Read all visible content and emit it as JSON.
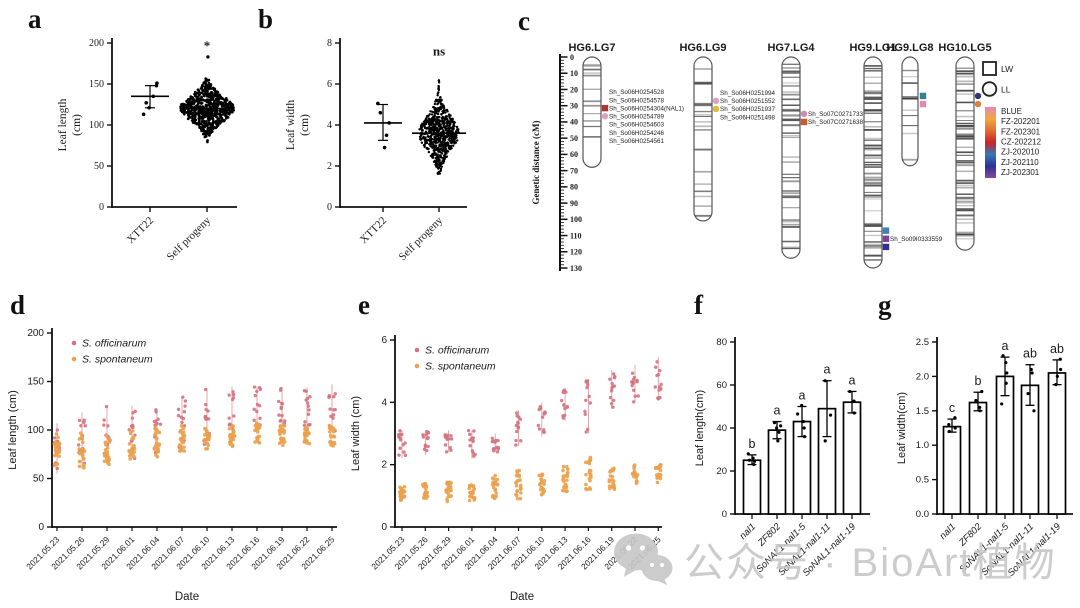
{
  "panel_letters": {
    "a": "a",
    "b": "b",
    "c": "c",
    "d": "d",
    "e": "e",
    "f": "f",
    "g": "g"
  },
  "watermark": {
    "icon": "wechat-icon",
    "text": "公众号 · BioArt植物"
  },
  "chart_data": [
    {
      "id": "a",
      "type": "scatter",
      "subtype": "beeswarm",
      "ylabel_lines": [
        "Leaf length",
        "(cm)"
      ],
      "ylim": [
        0,
        200
      ],
      "yticks": [
        0,
        50,
        100,
        150,
        200
      ],
      "ytick_labels": [
        "0",
        "50",
        "100",
        "150",
        "200"
      ],
      "categories": [
        "XTT22",
        "Self progeny"
      ],
      "groups": [
        {
          "name": "XTT22",
          "points": [
            151,
            148,
            135,
            127,
            121,
            113
          ],
          "mean": 135,
          "err_low": 121,
          "err_high": 148
        },
        {
          "name": "Self progeny",
          "mean": 120,
          "annotation": "*",
          "cloud": {
            "n": 680,
            "center": 120,
            "sd": 15,
            "min": 63,
            "max": 160
          },
          "outliers": [
            183
          ]
        }
      ]
    },
    {
      "id": "b",
      "type": "scatter",
      "subtype": "beeswarm",
      "ylabel_lines": [
        "Leaf width",
        "(cm)"
      ],
      "ylim": [
        0,
        8
      ],
      "yticks": [
        0,
        2,
        4,
        6,
        8
      ],
      "ytick_labels": [
        "0",
        "2",
        "4",
        "6",
        "8"
      ],
      "categories": [
        "XTT22",
        "Self progeny"
      ],
      "groups": [
        {
          "name": "XTT22",
          "points": [
            5.05,
            4.6,
            4.1,
            3.5,
            2.9
          ],
          "mean": 4.1,
          "err_low": 3.25,
          "err_high": 5.0
        },
        {
          "name": "Self progeny",
          "mean": 3.6,
          "annotation": "ns",
          "cloud": {
            "n": 680,
            "center": 3.6,
            "sd": 0.8,
            "min": 1.6,
            "max": 6.6
          },
          "outliers": []
        }
      ]
    },
    {
      "id": "c",
      "type": "linkage-map",
      "axis": {
        "label": "Genetic distance (cM)",
        "min": 0,
        "max": 130,
        "major": 10,
        "minor": 2
      },
      "legend_shapes": [
        {
          "shape": "square",
          "label": "LW"
        },
        {
          "shape": "circle",
          "label": "LL"
        }
      ],
      "legend_colors": [
        {
          "label": "BLUE",
          "color": "#e287b6"
        },
        {
          "label": "FZ-202201",
          "color": "#f2a93b"
        },
        {
          "label": "FZ-202301",
          "color": "#e06e30"
        },
        {
          "label": "CZ-202212",
          "color": "#cc2128"
        },
        {
          "label": "ZJ-202010",
          "color": "#3579b8"
        },
        {
          "label": "ZJ-202110",
          "color": "#2e3192"
        },
        {
          "label": "ZJ-202301",
          "color": "#86489c"
        }
      ],
      "chromosomes": [
        {
          "name": "HG6.LG7",
          "length_cM": 68,
          "band_count": 13,
          "markers": [
            {
              "label": "Sh_So06H0254528",
              "cM": 21.5,
              "shape": "none",
              "color": ""
            },
            {
              "label": "Sh_So06H0254578",
              "cM": 26.5,
              "shape": "none",
              "color": ""
            },
            {
              "label": "Sh_So06H0254304(NAL1)",
              "cM": 31.5,
              "shape": "square",
              "color": "#a63a32"
            },
            {
              "label": "Sh_So06H0254789",
              "cM": 36.5,
              "shape": "circle",
              "color": "#dba3c3"
            },
            {
              "label": "Sh_So06H0254603",
              "cM": 41.5,
              "shape": "none",
              "color": ""
            },
            {
              "label": "Sh_So06H0254246",
              "cM": 46.5,
              "shape": "none",
              "color": ""
            },
            {
              "label": "Sh_So06H0254561",
              "cM": 51.5,
              "shape": "none",
              "color": ""
            }
          ]
        },
        {
          "name": "HG6.LG9",
          "length_cM": 101,
          "band_count": 20,
          "markers": [
            {
              "label": "Sh_So06H0251994",
              "cM": 22,
              "shape": "none",
              "color": ""
            },
            {
              "label": "Sh_So06H0251552",
              "cM": 27,
              "shape": "circle",
              "color": "#dba3c3"
            },
            {
              "label": "Sh_So06H0251937",
              "cM": 32,
              "shape": "circle",
              "color": "#e3b83e"
            },
            {
              "label": "Sh_So06H0251498",
              "cM": 37,
              "shape": "none",
              "color": ""
            }
          ]
        },
        {
          "name": "HG7.LG4",
          "length_cM": 124,
          "band_count": 45,
          "markers": [
            {
              "label": "Sh_So07C0271733",
              "cM": 35,
              "shape": "circle",
              "color": "#c98cb4"
            },
            {
              "label": "Sh_So07C0271638",
              "cM": 40,
              "shape": "square",
              "color": "#cc5a2e"
            }
          ]
        },
        {
          "name": "HG9.LG1",
          "length_cM": 130,
          "band_count": 72,
          "markers": [
            {
              "label": "",
              "cM": 107,
              "shape": "square",
              "color": "#4080b8"
            },
            {
              "label": "Sh_So09I0333559",
              "cM": 112,
              "shape": "square",
              "color": "#7b4397"
            },
            {
              "label": "",
              "cM": 117,
              "shape": "square",
              "color": "#2e3192"
            }
          ]
        },
        {
          "name": "HG9.LG8",
          "length_cM": 67,
          "band_count": 13,
          "markers": [
            {
              "label": "",
              "cM": 24,
              "shape": "square",
              "color": "#35808e"
            },
            {
              "label": "",
              "cM": 29,
              "shape": "square",
              "color": "#d890ab"
            }
          ]
        },
        {
          "name": "HG10.LG5",
          "length_cM": 119,
          "band_count": 62,
          "markers": [
            {
              "label": "",
              "cM": 24,
              "shape": "circle",
              "color": "#2e3578"
            },
            {
              "label": "",
              "cM": 29,
              "shape": "circle",
              "color": "#d97f3f"
            }
          ]
        }
      ]
    },
    {
      "id": "d",
      "type": "scatter",
      "subtype": "grouped-by-date",
      "xlabel": "Date",
      "ylabel": "Leaf length (cm)",
      "ylim": [
        0,
        200
      ],
      "yticks": [
        0,
        50,
        100,
        150,
        200
      ],
      "ytick_labels": [
        "0",
        "50",
        "100",
        "150",
        "200"
      ],
      "categories": [
        "2021.05.23",
        "2021.05.26",
        "2021.05.29",
        "2021.06.01",
        "2021.06.04",
        "2021.06.07",
        "2021.06.10",
        "2021.06.13",
        "2021.06.16",
        "2021.06.19",
        "2021.06.22",
        "2021.06.25"
      ],
      "series": [
        {
          "name": "S. officinarum",
          "color": "#d4737f",
          "ranges": [
            [
              55,
              107
            ],
            [
              60,
              118
            ],
            [
              64,
              125
            ],
            [
              70,
              125
            ],
            [
              72,
              122
            ],
            [
              78,
              134
            ],
            [
              85,
              143
            ],
            [
              92,
              145
            ],
            [
              100,
              145
            ],
            [
              103,
              143
            ],
            [
              100,
              144
            ],
            [
              98,
              147
            ]
          ]
        },
        {
          "name": "S. spontaneum",
          "color": "#eba14d",
          "ranges": [
            [
              60,
              100
            ],
            [
              60,
              100
            ],
            [
              64,
              95
            ],
            [
              70,
              100
            ],
            [
              72,
              103
            ],
            [
              78,
              105
            ],
            [
              80,
              105
            ],
            [
              82,
              105
            ],
            [
              85,
              107
            ],
            [
              84,
              105
            ],
            [
              84,
              103
            ],
            [
              83,
              105
            ]
          ]
        }
      ]
    },
    {
      "id": "e",
      "type": "scatter",
      "subtype": "grouped-by-date",
      "xlabel": "Date",
      "ylabel": "Leaf width (cm)",
      "ylim": [
        0,
        6
      ],
      "yticks": [
        0,
        2,
        4,
        6
      ],
      "ytick_labels": [
        "0",
        "2",
        "4",
        "6"
      ],
      "categories": [
        "2021.05.23",
        "2021.05.26",
        "2021.05.29",
        "2021.06.01",
        "2021.06.04",
        "2021.06.07",
        "2021.06.10",
        "2021.06.13",
        "2021.06.16",
        "2021.06.19",
        "2021.06.22",
        "2021.06.25"
      ],
      "series": [
        {
          "name": "S. officinarum",
          "color": "#d4737f",
          "ranges": [
            [
              2.2,
              3.1
            ],
            [
              2.3,
              3.1
            ],
            [
              2.4,
              3.1
            ],
            [
              2.2,
              3.1
            ],
            [
              2.4,
              3.0
            ],
            [
              2.6,
              3.75
            ],
            [
              2.9,
              4.0
            ],
            [
              3.4,
              4.45
            ],
            [
              3.0,
              4.75
            ],
            [
              3.8,
              5.05
            ],
            [
              4.0,
              5.2
            ],
            [
              4.05,
              5.45
            ]
          ]
        },
        {
          "name": "S. spontaneum",
          "color": "#eba14d",
          "ranges": [
            [
              0.8,
              1.3
            ],
            [
              0.9,
              1.4
            ],
            [
              0.8,
              1.45
            ],
            [
              0.85,
              1.35
            ],
            [
              0.9,
              1.65
            ],
            [
              0.9,
              1.85
            ],
            [
              1.0,
              1.75
            ],
            [
              1.1,
              1.95
            ],
            [
              1.15,
              2.25
            ],
            [
              1.15,
              1.9
            ],
            [
              1.35,
              2.05
            ],
            [
              1.35,
              2.0
            ]
          ]
        }
      ]
    },
    {
      "id": "f",
      "type": "bar",
      "ylabel": "Leaf length(cm)",
      "ylim": [
        0,
        80
      ],
      "yticks": [
        0,
        20,
        40,
        60,
        80
      ],
      "ytick_labels": [
        "0",
        "20",
        "40",
        "60",
        "80"
      ],
      "categories": [
        "nal1",
        "ZF802",
        "SoNAL1-nal1-5",
        "SoNAL1-nal1-11",
        "SoNAL1-nal1-19"
      ],
      "values": [
        25,
        39,
        43,
        49,
        52
      ],
      "err_low": [
        23,
        35,
        36,
        36,
        47
      ],
      "err_high": [
        27.5,
        43,
        50,
        62,
        57
      ],
      "letters": [
        "b",
        "a",
        "a",
        "a",
        "a"
      ],
      "dots": [
        [
          23,
          24.5,
          25,
          26,
          28
        ],
        [
          34,
          38,
          40,
          41,
          42.5
        ],
        [
          36,
          40,
          43,
          46.5,
          50.5
        ],
        [
          34,
          46,
          62
        ],
        [
          47,
          52.5,
          57
        ]
      ]
    },
    {
      "id": "g",
      "type": "bar",
      "ylabel": "Leaf width(cm)",
      "ylim": [
        0,
        2.5
      ],
      "yticks": [
        0,
        0.5,
        1,
        1.5,
        2,
        2.5
      ],
      "ytick_labels": [
        "0.0",
        "0.5",
        "1.0",
        "1.5",
        "2.0",
        "2.5"
      ],
      "categories": [
        "nal1",
        "ZF802",
        "SoNAL1-nal1-5",
        "SoNAL1-nal1-11",
        "SoNAL1-nal1-19"
      ],
      "values": [
        1.27,
        1.62,
        2.0,
        1.87,
        2.05
      ],
      "err_low": [
        1.19,
        1.5,
        1.72,
        1.58,
        1.88
      ],
      "err_high": [
        1.38,
        1.77,
        2.28,
        2.17,
        2.24
      ],
      "letters": [
        "c",
        "b",
        "a",
        "ab",
        "ab"
      ],
      "dots": [
        [
          1.2,
          1.25,
          1.3,
          1.4
        ],
        [
          1.5,
          1.55,
          1.65,
          1.78
        ],
        [
          1.6,
          1.9,
          2.05,
          2.2,
          2.3
        ],
        [
          1.5,
          1.75,
          2.05,
          2.1
        ],
        [
          1.88,
          2.0,
          2.1,
          2.25
        ]
      ]
    }
  ]
}
